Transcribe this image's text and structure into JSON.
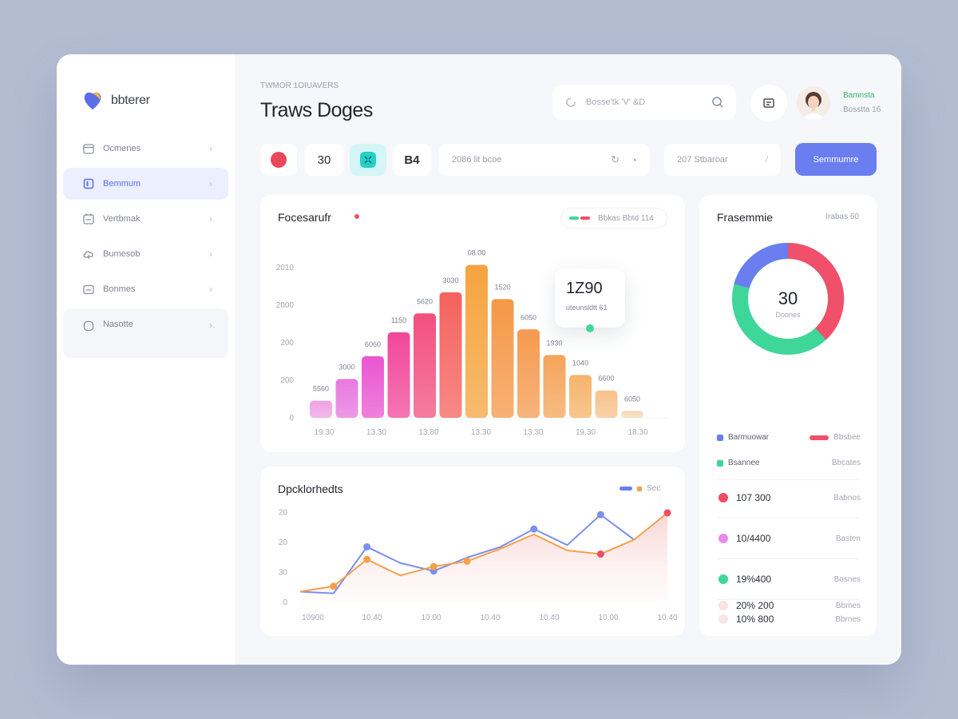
{
  "brand": {
    "name": "bbterer"
  },
  "sidebar": {
    "items": [
      {
        "label": "Ocmenes",
        "icon": "calendar-icon",
        "active": false
      },
      {
        "label": "Bemmum",
        "icon": "document-icon",
        "active": true
      },
      {
        "label": "Vertbmak",
        "icon": "grid-calendar-icon",
        "active": false
      },
      {
        "label": "Bumesob",
        "icon": "cloud-upload-icon",
        "active": false
      },
      {
        "label": "Bonmes",
        "icon": "folder-icon",
        "active": false
      },
      {
        "label": "Nasotte",
        "icon": "settings-icon",
        "active": false
      }
    ]
  },
  "header": {
    "breadcrumb": "TWMOR 1OIUAVERS",
    "title": "Traws Doges",
    "search_placeholder": "Bosse'tk 'V' &D",
    "user_name": "Bamnsta",
    "user_sub": "Bosstta 16"
  },
  "toolbar": {
    "chip_count": "30",
    "chip_code": "B4",
    "filter1_text": "2086 lit bcoe",
    "filter2_text": "207 Stbaroar",
    "button_label": "Semmumre"
  },
  "bar_card": {
    "title": "Focesarufr",
    "legend_text": "Bbkas  Bbtd 114",
    "tooltip_value": "1Z90",
    "tooltip_label": "uteunsldtt 61"
  },
  "line_card": {
    "title": "Dpcklorhedts",
    "legend_text": "Sec"
  },
  "donut_card": {
    "title": "Frasemmie",
    "header_right": "Irabas 60",
    "center_value": "30",
    "center_label": "Doones",
    "legend": [
      {
        "label": "Barmuowar",
        "color": "#6a7ef0"
      },
      {
        "label": "Bbsbee",
        "color": "#f0506a"
      },
      {
        "label": "Bsannee",
        "color": "#3fd69a",
        "right": "Bbcates"
      }
    ],
    "stats": [
      {
        "value": "107 300",
        "sub": "Babnos",
        "color": "#ef4c5e"
      },
      {
        "value": "10/4400",
        "sub": "Basten",
        "color": "#e88ae8"
      },
      {
        "value": "19%400",
        "sub": "Bosnes",
        "color": "#3fd69a"
      },
      {
        "value": "10% 800",
        "sub": "Bbrnes",
        "color": "#fbe6e6"
      },
      {
        "value": "20% 200",
        "sub": "Bbmes",
        "color": "#fbe1df"
      }
    ]
  },
  "chart_data": [
    {
      "type": "bar",
      "categories": [
        "1",
        "2",
        "3",
        "4",
        "5",
        "6",
        "7",
        "8",
        "9",
        "10",
        "11",
        "12",
        "13"
      ],
      "values": [
        30,
        68,
        108,
        150,
        183,
        220,
        268,
        208,
        155,
        110,
        75,
        48,
        12
      ],
      "value_labels": [
        "5560",
        "3000",
        "6060",
        "1150",
        "5620",
        "3030",
        "08.00",
        "1520",
        "6050",
        "1930",
        "1040",
        "6600",
        "6050"
      ],
      "ylabels": [
        "0",
        "200",
        "200",
        "2000",
        "2010"
      ],
      "xlabels": [
        "19.30",
        "13.30",
        "13.80",
        "13.30",
        "13.30",
        "19.30",
        "18.30"
      ],
      "ylim": [
        0,
        280
      ],
      "colors": [
        "#f0a0e4",
        "#e878e0",
        "#ea56d0",
        "#f2479a",
        "#f2507e",
        "#f4625e",
        "#f5a43e",
        "#f59848",
        "#f59a50",
        "#f4a55a",
        "#f5b46a",
        "#f6c28c",
        "#f7d8b8"
      ]
    },
    {
      "type": "line",
      "x": [
        0,
        1,
        2,
        3,
        4,
        5,
        6,
        7,
        8,
        9,
        10,
        11
      ],
      "ylabels": [
        "0",
        "30",
        "20",
        "20"
      ],
      "xlabels": [
        "10900",
        "10.40",
        "10.00",
        "10.40",
        "10.40",
        "10.00",
        "10.40"
      ],
      "ylim": [
        0,
        100
      ],
      "series": [
        {
          "color": "#7d8ef0",
          "values": [
            12,
            10,
            62,
            44,
            35,
            50,
            62,
            82,
            64,
            98,
            70,
            null
          ]
        },
        {
          "color": "#f5a04a",
          "values": [
            12,
            18,
            48,
            30,
            40,
            46,
            60,
            76,
            58,
            54,
            70,
            100
          ],
          "highlight_end_color": "#ef4c5e"
        }
      ]
    }
  ]
}
